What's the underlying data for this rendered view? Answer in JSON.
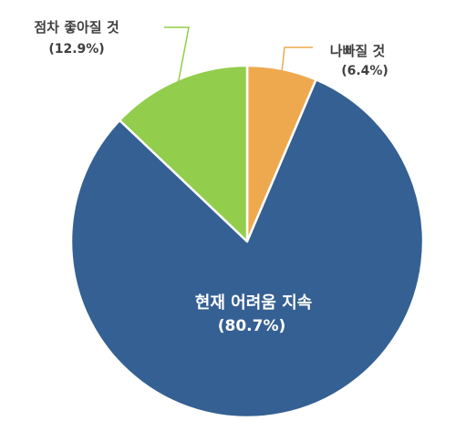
{
  "chart_data": {
    "type": "pie",
    "slices": [
      {
        "label": "나빠질 것",
        "value": 6.4,
        "value_label": "(6.4%)",
        "color": "#EEA94F"
      },
      {
        "label": "현재 어려움 지속",
        "value": 80.7,
        "value_label": "(80.7%)",
        "color": "#356093"
      },
      {
        "label": "점차 좋아질 것",
        "value": 12.9,
        "value_label": "(12.9%)",
        "color": "#92CD4C"
      }
    ],
    "label_color_outside": "#404040",
    "label_color_inside": "#ffffff",
    "slice_border": "#ffffff",
    "start_angle": "12 o'clock",
    "direction": "clockwise"
  }
}
